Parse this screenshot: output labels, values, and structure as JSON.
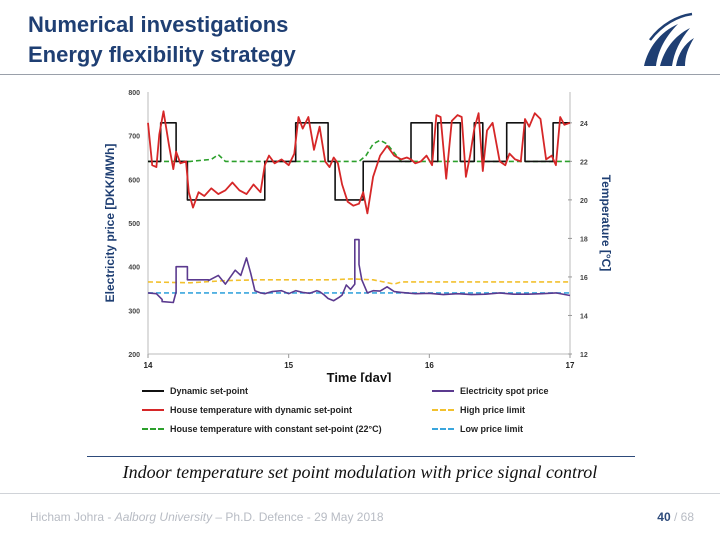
{
  "slide": {
    "title_line1": "Numerical investigations",
    "title_line2": "Energy flexibility strategy",
    "caption": "Indoor temperature set point modulation with price signal control",
    "footer_prefix": "Hicham Johra - ",
    "footer_uni": "Aalborg University",
    "footer_suffix": " – Ph.D. Defence - 29 May 2018",
    "page_current": "40",
    "page_sep": " / ",
    "page_total": "68"
  },
  "colors": {
    "title": "#1f3f73",
    "dynamic_setpoint": "#111111",
    "house_temp_dynamic": "#d62728",
    "house_temp_constant": "#2ca02c",
    "spot_price": "#5b3a8f",
    "high_limit": "#f2c12e",
    "low_limit": "#3aa6dd"
  },
  "chart_data": {
    "type": "line",
    "xlabel": "Time [day]",
    "ylabel_left": "Electricity price [DKK/MWh]",
    "ylabel_right": "Temperature [°C]",
    "xlim": [
      14,
      17
    ],
    "x_ticks": [
      "14",
      "15",
      "16",
      "17"
    ],
    "ylim_left": [
      200,
      800
    ],
    "y_ticks_left": [
      "200",
      "300",
      "400",
      "500",
      "600",
      "700",
      "800"
    ],
    "ylim_right": [
      12,
      25.6
    ],
    "y_ticks_right": [
      "12",
      "14",
      "16",
      "18",
      "20",
      "22",
      "24"
    ],
    "legend": [
      {
        "name": "Dynamic set-point",
        "key": "dynamic_setpoint",
        "dash": "solid"
      },
      {
        "name": "Electricity spot price",
        "key": "spot_price",
        "dash": "solid"
      },
      {
        "name": "House temperature with dynamic set-point",
        "key": "house_temp_dynamic",
        "dash": "solid"
      },
      {
        "name": "High price limit",
        "key": "high_limit",
        "dash": "dashed"
      },
      {
        "name": "House temperature with constant set-point (22°C)",
        "key": "house_temp_constant",
        "dash": "dashed"
      },
      {
        "name": "Low price limit",
        "key": "low_limit",
        "dash": "dashed"
      }
    ],
    "series": [
      {
        "name": "Dynamic set-point",
        "key": "dynamic_setpoint",
        "axis": "right",
        "dash": "solid",
        "x": [
          14.0,
          14.09,
          14.09,
          14.2,
          14.2,
          14.28,
          14.28,
          14.83,
          14.83,
          15.05,
          15.05,
          15.28,
          15.28,
          15.33,
          15.33,
          15.53,
          15.53,
          15.87,
          15.87,
          16.02,
          16.02,
          16.06,
          16.06,
          16.22,
          16.22,
          16.32,
          16.32,
          16.38,
          16.38,
          16.55,
          16.55,
          16.68,
          16.68,
          16.88,
          16.88,
          16.93,
          16.93,
          17.0
        ],
        "y": [
          22,
          22,
          24,
          24,
          22,
          22,
          20,
          20,
          22,
          22,
          24,
          24,
          22,
          22,
          20,
          20,
          22,
          22,
          24,
          24,
          22,
          22,
          24,
          24,
          22,
          22,
          24,
          24,
          22,
          22,
          24,
          24,
          22,
          22,
          24,
          24,
          24,
          24
        ]
      },
      {
        "name": "House temperature with dynamic set-point",
        "key": "house_temp_dynamic",
        "axis": "right",
        "dash": "solid",
        "x": [
          14.0,
          14.03,
          14.06,
          14.08,
          14.11,
          14.15,
          14.18,
          14.2,
          14.23,
          14.27,
          14.29,
          14.32,
          14.36,
          14.4,
          14.45,
          14.5,
          14.55,
          14.6,
          14.65,
          14.7,
          14.75,
          14.8,
          14.83,
          14.86,
          14.9,
          14.95,
          15.0,
          15.04,
          15.07,
          15.1,
          15.14,
          15.18,
          15.22,
          15.26,
          15.29,
          15.32,
          15.35,
          15.38,
          15.42,
          15.46,
          15.5,
          15.53,
          15.56,
          15.6,
          15.65,
          15.7,
          15.75,
          15.8,
          15.84,
          15.87,
          15.9,
          15.94,
          15.98,
          16.02,
          16.05,
          16.08,
          16.12,
          16.16,
          16.2,
          16.23,
          16.26,
          16.29,
          16.32,
          16.35,
          16.38,
          16.41,
          16.45,
          16.5,
          16.54,
          16.57,
          16.61,
          16.65,
          16.68,
          16.71,
          16.75,
          16.79,
          16.83,
          16.87,
          16.9,
          16.93,
          16.96,
          17.0
        ],
        "y": [
          24.0,
          21.8,
          21.7,
          23.4,
          24.6,
          22.8,
          21.6,
          22.5,
          21.9,
          22.0,
          20.4,
          19.6,
          20.4,
          20.2,
          20.6,
          20.3,
          20.5,
          20.9,
          20.5,
          20.3,
          20.8,
          20.4,
          21.8,
          22.3,
          21.9,
          22.1,
          21.8,
          22.4,
          24.3,
          23.7,
          24.3,
          22.6,
          23.8,
          22.0,
          21.7,
          22.2,
          21.9,
          20.8,
          19.9,
          19.7,
          19.8,
          20.4,
          19.3,
          21.2,
          22.3,
          22.8,
          22.3,
          22.1,
          22.2,
          22.1,
          21.9,
          22.0,
          22.3,
          21.8,
          24.4,
          24.3,
          21.1,
          24.1,
          24.4,
          24.3,
          21.2,
          22.3,
          23.7,
          24.5,
          21.5,
          23.6,
          24.0,
          22.0,
          21.8,
          22.4,
          22.1,
          22.0,
          24.2,
          23.8,
          24.5,
          24.2,
          22.1,
          22.3,
          21.8,
          24.3,
          23.9,
          24.0
        ]
      },
      {
        "name": "House temperature with constant set-point (22°C)",
        "key": "house_temp_constant",
        "axis": "right",
        "dash": "dashed",
        "x": [
          14.0,
          14.3,
          14.45,
          14.5,
          14.55,
          14.8,
          15.3,
          15.5,
          15.55,
          15.6,
          15.65,
          15.7,
          15.8,
          16.0,
          16.5,
          17.0
        ],
        "y": [
          22.0,
          22.0,
          22.1,
          22.35,
          22.0,
          22.0,
          22.0,
          22.0,
          22.3,
          22.9,
          23.1,
          22.9,
          22.0,
          22.0,
          22.0,
          22.0
        ]
      },
      {
        "name": "Electricity spot price",
        "key": "spot_price",
        "axis": "left",
        "dash": "solid",
        "x": [
          14.0,
          14.06,
          14.1,
          14.1,
          14.18,
          14.2,
          14.2,
          14.28,
          14.28,
          14.43,
          14.43,
          14.5,
          14.55,
          14.62,
          14.66,
          14.7,
          14.73,
          14.76,
          14.8,
          14.83,
          14.88,
          14.95,
          15.0,
          15.05,
          15.1,
          15.15,
          15.2,
          15.22,
          15.25,
          15.28,
          15.32,
          15.36,
          15.38,
          15.41,
          15.44,
          15.47,
          15.47,
          15.5,
          15.5,
          15.52,
          15.56,
          15.6,
          15.65,
          15.7,
          15.75,
          15.8,
          15.9,
          16.0,
          16.1,
          16.2,
          16.3,
          16.4,
          16.5,
          16.6,
          16.7,
          16.8,
          16.9,
          17.0
        ],
        "y": [
          340,
          338,
          325,
          320,
          318,
          342,
          400,
          400,
          370,
          370,
          368,
          380,
          360,
          392,
          380,
          420,
          385,
          345,
          340,
          338,
          343,
          345,
          338,
          345,
          341,
          339,
          345,
          343,
          336,
          327,
          322,
          330,
          335,
          358,
          348,
          360,
          462,
          462,
          405,
          370,
          340,
          345,
          344,
          354,
          343,
          341,
          338,
          339,
          336,
          338,
          336,
          337,
          340,
          337,
          337,
          338,
          340,
          334
        ]
      },
      {
        "name": "High price limit",
        "key": "high_limit",
        "axis": "left",
        "dash": "dashed",
        "x": [
          14.0,
          14.3,
          14.55,
          14.8,
          15.0,
          15.3,
          15.45,
          15.6,
          15.75,
          15.8,
          16.0,
          17.0
        ],
        "y": [
          365,
          363,
          368,
          370,
          370,
          370,
          372,
          370,
          360,
          365,
          365,
          365
        ]
      },
      {
        "name": "Low price limit",
        "key": "low_limit",
        "axis": "left",
        "dash": "dashed",
        "x": [
          14.0,
          14.5,
          15.0,
          15.5,
          16.0,
          16.5,
          17.0
        ],
        "y": [
          340,
          340,
          340,
          340,
          340,
          340,
          340
        ]
      }
    ]
  }
}
